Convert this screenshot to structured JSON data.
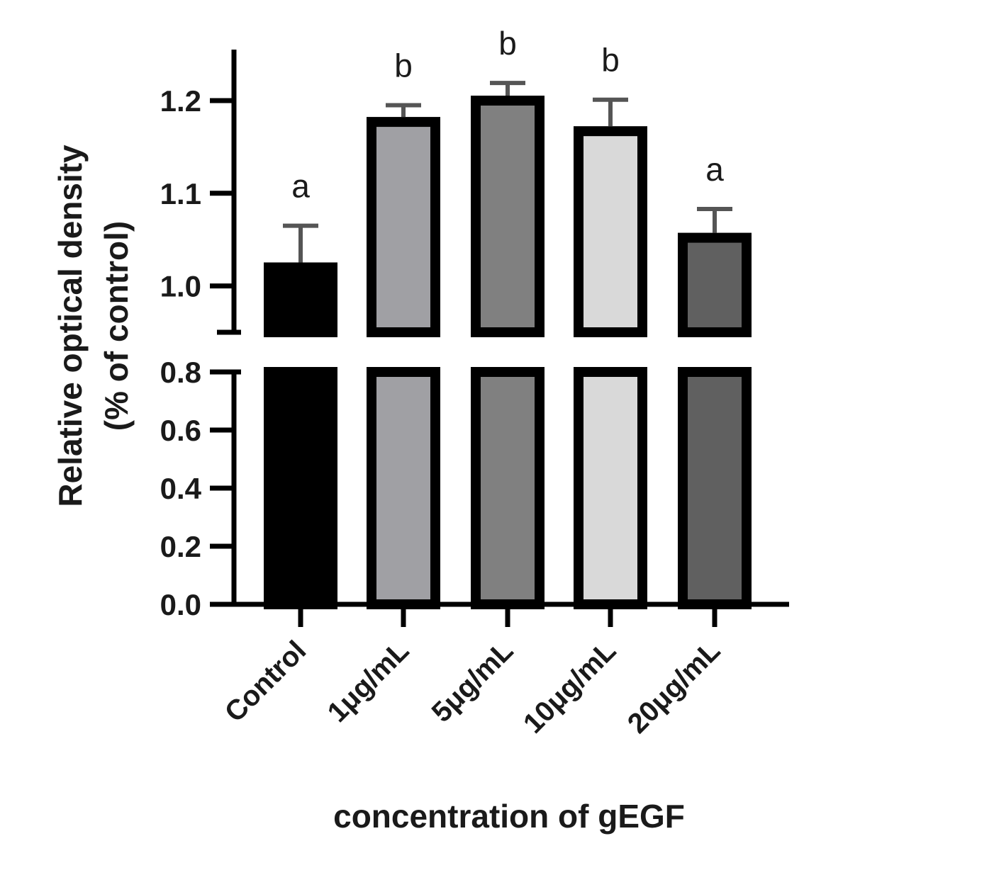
{
  "chart_data": {
    "type": "bar",
    "ylabel_line1": "Relative optical density",
    "ylabel_line2": "(% of control)",
    "xlabel": "concentration of gEGF",
    "categories": [
      "Control",
      "1μg/mL",
      "5μg/mL",
      "10μg/mL",
      "20μg/mL"
    ],
    "values": [
      1.02,
      1.177,
      1.2,
      1.167,
      1.052
    ],
    "errors": [
      0.045,
      0.018,
      0.019,
      0.034,
      0.031
    ],
    "significance": [
      "a",
      "b",
      "b",
      "b",
      "a"
    ],
    "fill_colors": [
      "#000000",
      "#a0a0a4",
      "#808080",
      "#d9d9d9",
      "#606060"
    ],
    "y_axis_break": [
      0.8,
      0.95
    ],
    "lower_segment": {
      "ylim": [
        0.0,
        0.8
      ],
      "ticks": [
        "0.0",
        "0.2",
        "0.4",
        "0.6",
        "0.8"
      ]
    },
    "upper_segment": {
      "ylim": [
        0.95,
        1.25
      ],
      "ticks": [
        "1.0",
        "1.1",
        "1.2"
      ]
    },
    "legend": "none",
    "grid": false
  }
}
